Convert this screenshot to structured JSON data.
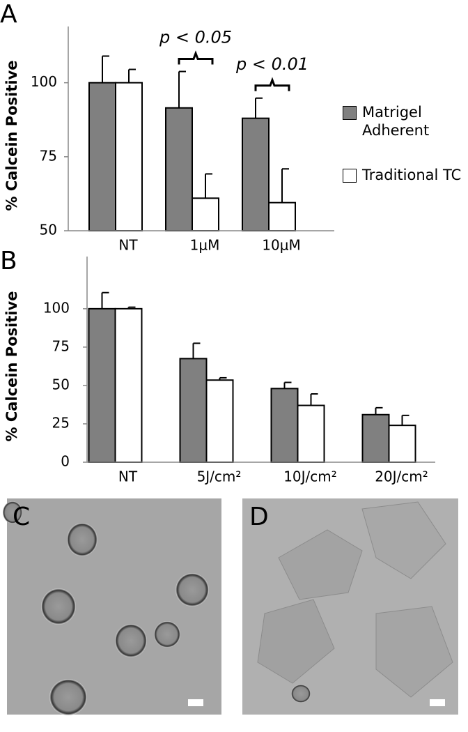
{
  "chart_data": [
    {
      "type": "bar",
      "panel_label": "A",
      "y_label": "% Calcein Positive",
      "categories": [
        "NT",
        "1µM",
        "10µM"
      ],
      "series": [
        {
          "name": "Matrigel Adherent",
          "color": "#808080",
          "values": [
            100,
            91.5,
            88
          ],
          "errors": [
            9,
            12.3,
            6.8
          ]
        },
        {
          "name": "Traditional TC",
          "color": "#ffffff",
          "values": [
            100,
            61,
            59.5
          ],
          "errors": [
            4.5,
            8.2,
            11.4
          ]
        }
      ],
      "annotations": [
        null,
        "p < 0.05",
        "p < 0.01"
      ],
      "ylim": [
        50,
        119
      ],
      "yticks": [
        50,
        75,
        100
      ],
      "legend": "right"
    },
    {
      "type": "bar",
      "panel_label": "B",
      "y_label": "% Calcein Positive",
      "categories": [
        "NT",
        "5J/cm²",
        "10J/cm²",
        "20J/cm²"
      ],
      "series": [
        {
          "name": "Matrigel Adherent",
          "color": "#808080",
          "values": [
            100,
            67.5,
            48,
            31
          ],
          "errors": [
            10.5,
            10,
            4,
            4.5
          ]
        },
        {
          "name": "Traditional TC",
          "color": "#ffffff",
          "values": [
            100,
            53.5,
            37,
            24
          ],
          "errors": [
            1,
            1.5,
            7.5,
            6.5
          ]
        }
      ],
      "ylim": [
        0,
        134
      ],
      "yticks": [
        0,
        25,
        50,
        75,
        100
      ]
    }
  ],
  "panels": [
    {
      "label": "C"
    },
    {
      "label": "D"
    }
  ]
}
